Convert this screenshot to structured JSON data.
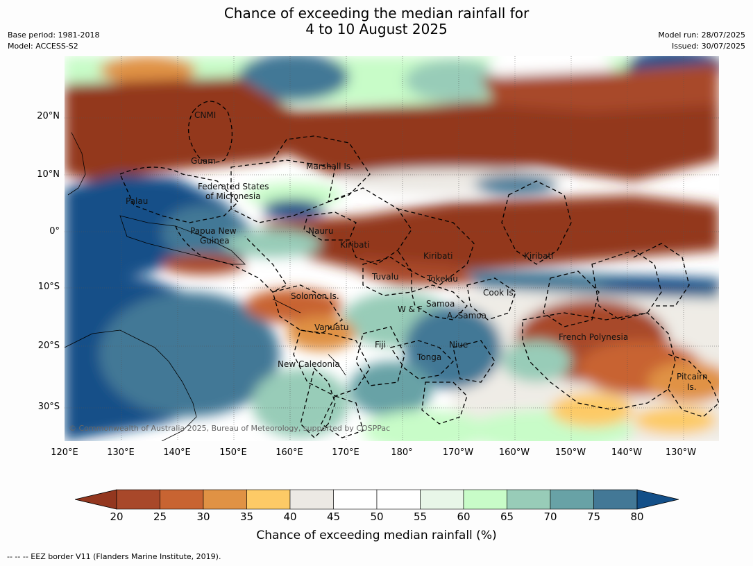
{
  "title_line1": "Chance of exceeding the median rainfall for",
  "title_line2": "4 to 10 August 2025",
  "base_period": "Base period: 1981-2018",
  "model": "Model: ACCESS-S2",
  "model_run": "Model run: 28/07/2025",
  "issued": "Issued: 30/07/2025",
  "lat_ticks": [
    "20°N",
    "10°N",
    "0°",
    "10°S",
    "20°S",
    "30°S"
  ],
  "lon_ticks": [
    "120°E",
    "130°E",
    "140°E",
    "150°E",
    "160°E",
    "170°E",
    "180°",
    "170°W",
    "160°W",
    "150°W",
    "140°W",
    "130°W"
  ],
  "places": {
    "cnmi": "CNMI",
    "guam": "Guam",
    "marshall": "Marshall Is.",
    "fsm1": "Federated States",
    "fsm2": "of Micronesia",
    "palau": "Palau",
    "png1": "Papua New",
    "png2": "Guinea",
    "nauru": "Nauru",
    "kiribati1": "Kiribati",
    "kiribati2": "Kiribati",
    "kiribati3": "Kiribati",
    "tuvalu": "Tuvalu",
    "tokelau": "Tokelau",
    "cook": "Cook Is.",
    "solomon": "Solomon Is.",
    "wf": "W & F",
    "samoa": "Samoa",
    "asamoa": "A. Samoa",
    "vanuatu": "Vanuatu",
    "fiji": "Fiji",
    "niue": "Niue",
    "tonga": "Tonga",
    "newcal": "New Caledonia",
    "frenchpoly": "French Polynesia",
    "pitcairn1": "Pitcairn",
    "pitcairn2": "Is."
  },
  "credit": "© Commonwealth of Australia 2025, Bureau of Meteorology, supported by COSPPac",
  "colorbar": {
    "ticks": [
      "20",
      "25",
      "30",
      "35",
      "40",
      "45",
      "50",
      "55",
      "60",
      "65",
      "70",
      "75",
      "80"
    ],
    "colors": [
      "#a8482a",
      "#c86432",
      "#e09244",
      "#fdca66",
      "#ece9e4",
      "#ffffff",
      "#ffffff",
      "#e8f6e8",
      "#c8fcc8",
      "#98ccb8",
      "#68a2a6",
      "#437896"
    ],
    "under_color": "#93371f",
    "over_color": "#134f88",
    "label": "Chance of exceeding median rainfall (%)"
  },
  "footnote": "--  --  -- EEZ border V11 (Flanders Marine Institute, 2019)."
}
